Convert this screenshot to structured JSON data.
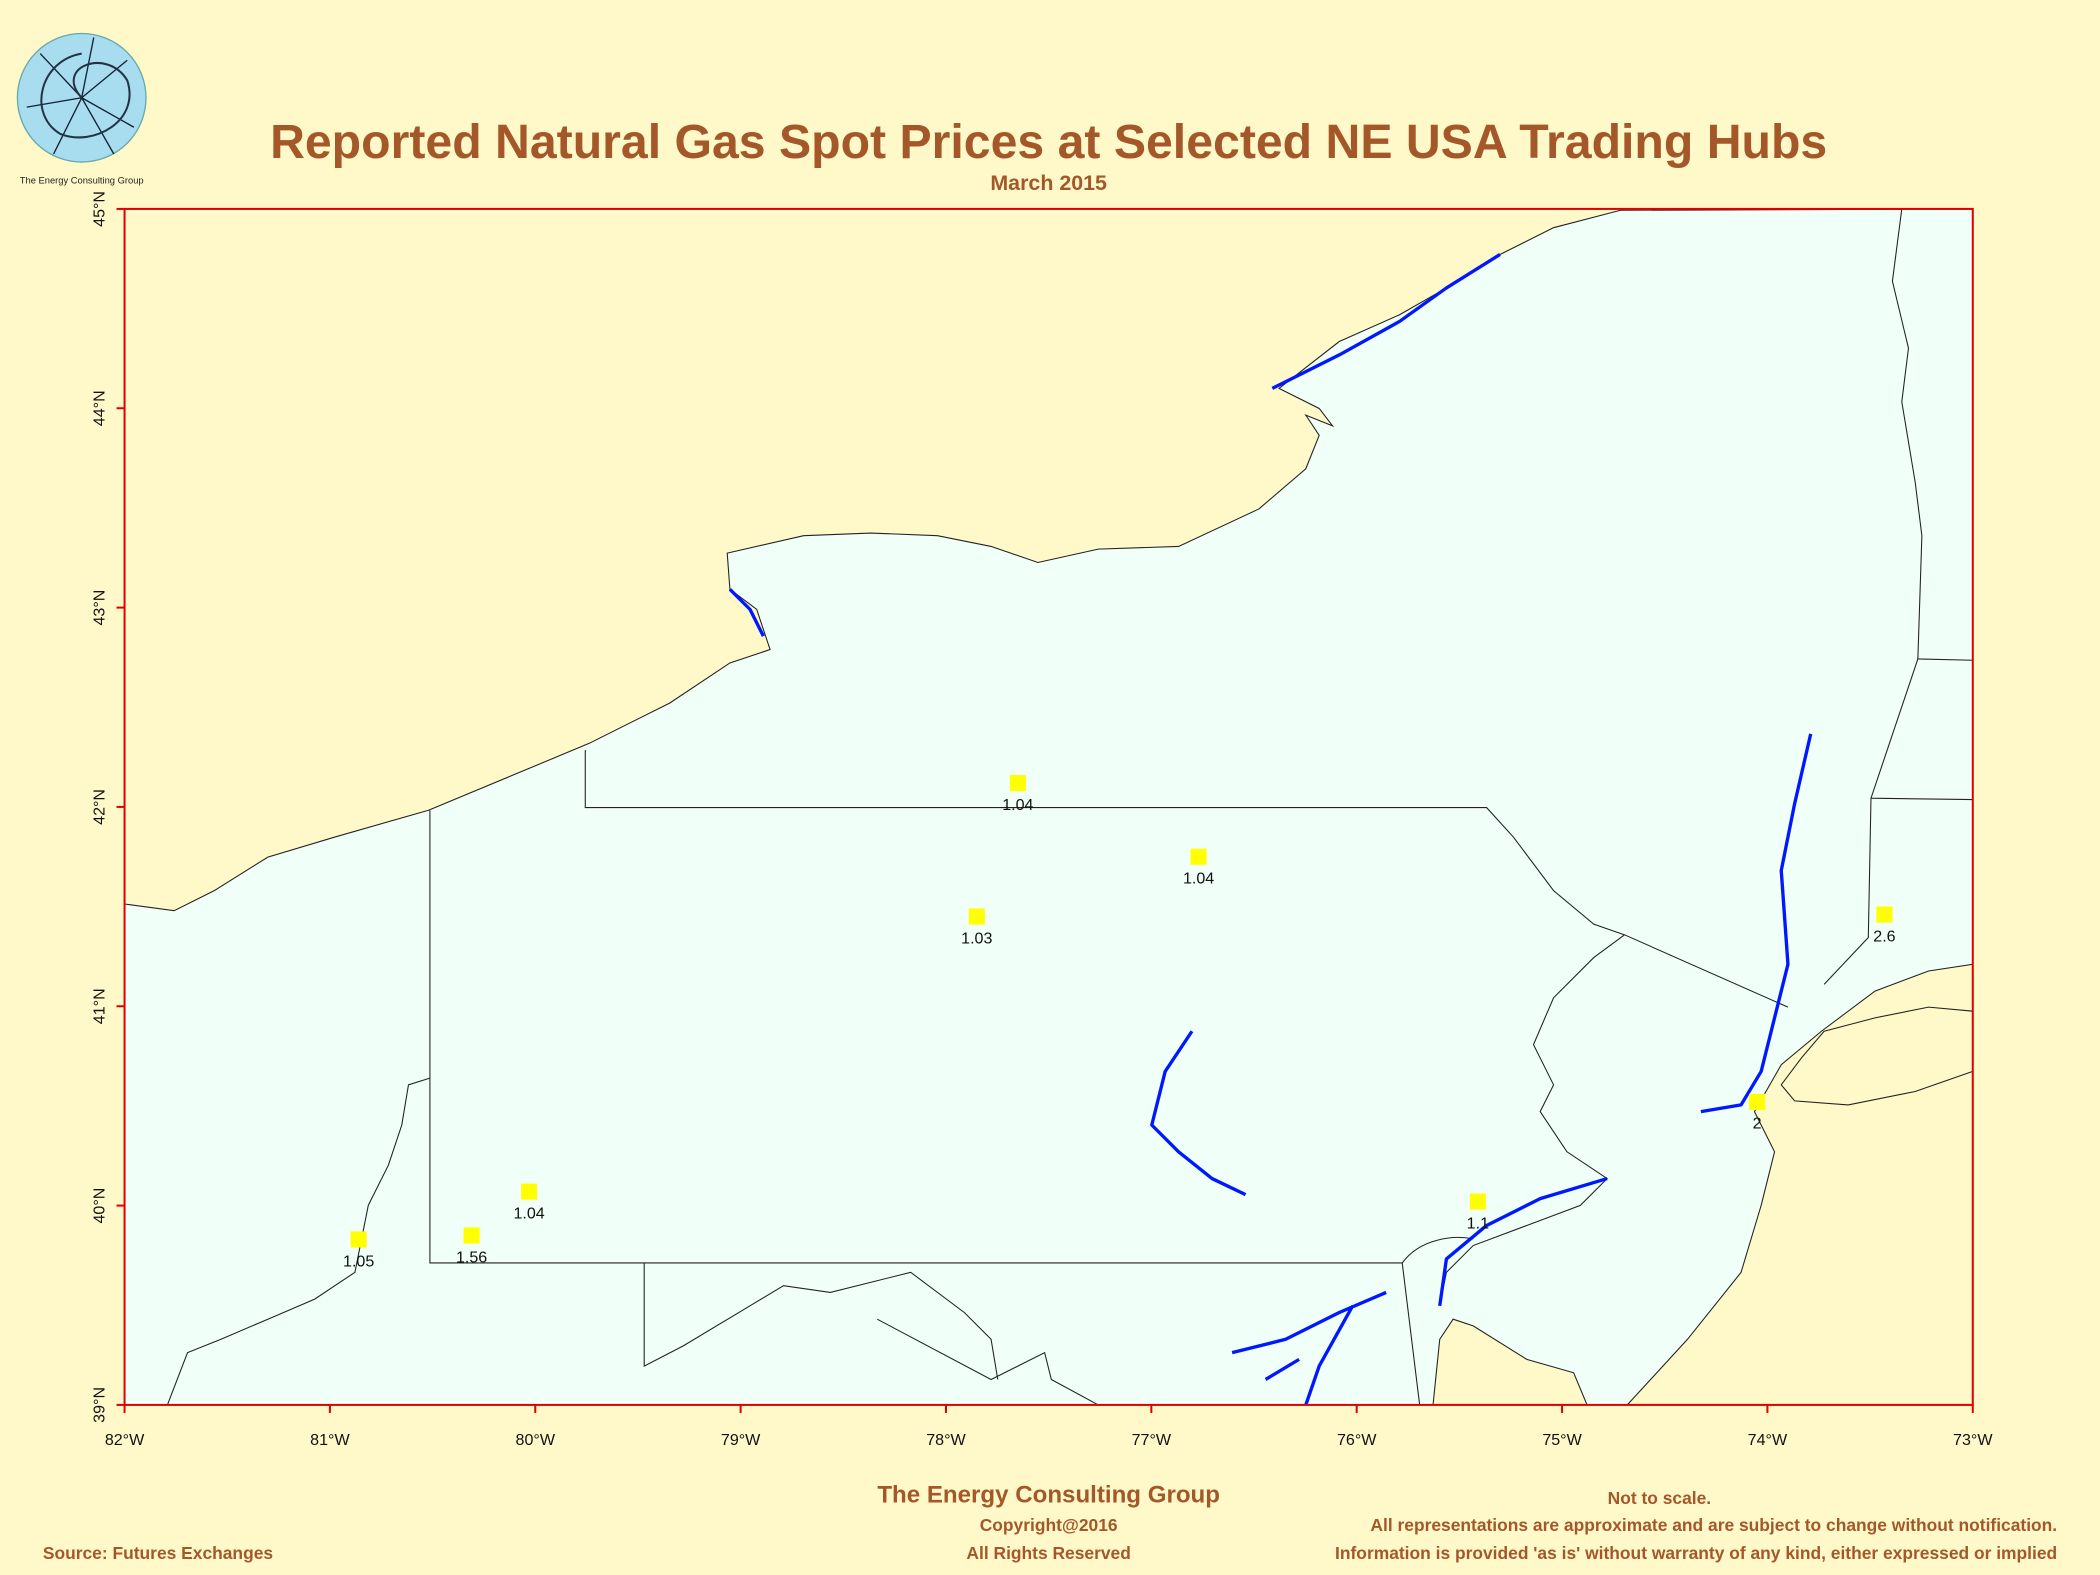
{
  "logo_text": "The Energy Consulting Group",
  "title": "Reported Natural Gas Spot Prices at Selected NE USA Trading Hubs",
  "subtitle": "March 2015",
  "map": {
    "xlim": [
      -82,
      -73
    ],
    "ylim": [
      39,
      45
    ],
    "xticks": [
      {
        "value": -82,
        "label": "82°W"
      },
      {
        "value": -81,
        "label": "81°W"
      },
      {
        "value": -80,
        "label": "80°W"
      },
      {
        "value": -79,
        "label": "79°W"
      },
      {
        "value": -78,
        "label": "78°W"
      },
      {
        "value": -77,
        "label": "77°W"
      },
      {
        "value": -76,
        "label": "76°W"
      },
      {
        "value": -75,
        "label": "75°W"
      },
      {
        "value": -74,
        "label": "74°W"
      },
      {
        "value": -73,
        "label": "73°W"
      }
    ],
    "yticks": [
      {
        "value": 39,
        "label": "39°N"
      },
      {
        "value": 40,
        "label": "40°N"
      },
      {
        "value": 41,
        "label": "41°N"
      },
      {
        "value": 42,
        "label": "42°N"
      },
      {
        "value": 43,
        "label": "43°N"
      },
      {
        "value": 44,
        "label": "44°N"
      },
      {
        "value": 45,
        "label": "45°N"
      }
    ],
    "marker_color": "#ffff00",
    "points": [
      {
        "lon": -77.65,
        "lat": 42.12,
        "price": 1.04
      },
      {
        "lon": -76.77,
        "lat": 41.75,
        "price": 1.04
      },
      {
        "lon": -77.85,
        "lat": 41.45,
        "price": 1.03
      },
      {
        "lon": -73.43,
        "lat": 41.46,
        "price": 2.6
      },
      {
        "lon": -74.05,
        "lat": 40.52,
        "price": 2
      },
      {
        "lon": -75.41,
        "lat": 40.02,
        "price": 1.1
      },
      {
        "lon": -80.03,
        "lat": 40.07,
        "price": 1.04
      },
      {
        "lon": -80.31,
        "lat": 39.85,
        "price": 1.56
      },
      {
        "lon": -80.86,
        "lat": 39.83,
        "price": 1.05
      }
    ]
  },
  "footer": {
    "company": "The Energy Consulting Group",
    "copyright": "Copyright@2016",
    "rights": "All Rights Reserved",
    "source": "Source: Futures Exchanges",
    "scale_note": "Not to scale.",
    "disclaimer_1": "All representations are approximate and are subject to change without notification.",
    "disclaimer_2": "Information is provided 'as is' without warranty of any kind, either expressed or implied"
  }
}
